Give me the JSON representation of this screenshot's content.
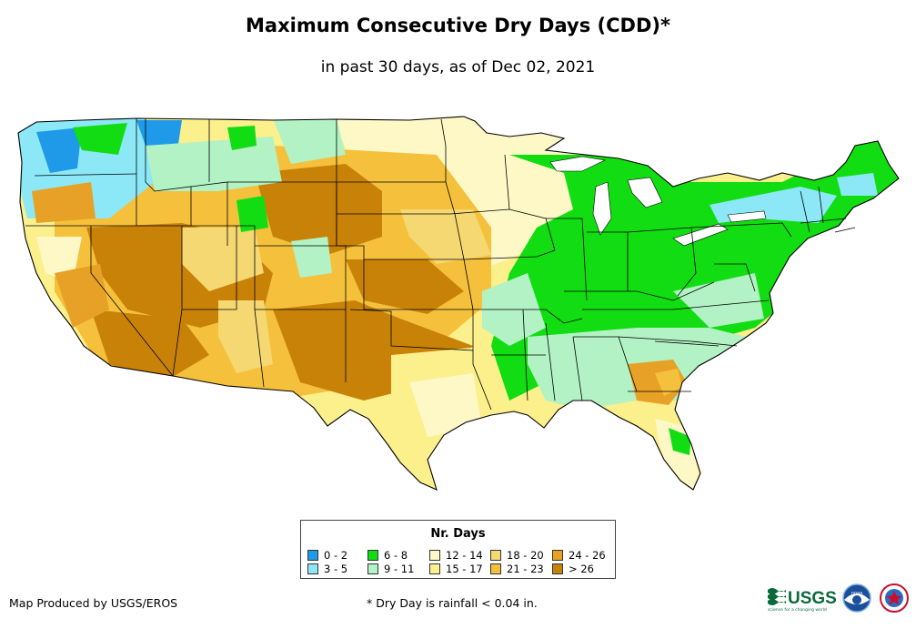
{
  "title": "Maximum Consecutive Dry Days (CDD)*",
  "subtitle": "in past 30 days, as of Dec 02, 2021",
  "legend": {
    "title": "Nr. Days",
    "items": [
      {
        "label": "0 - 2",
        "color": "#1f9ae9"
      },
      {
        "label": "3 - 5",
        "color": "#8ce8f6"
      },
      {
        "label": "6 - 8",
        "color": "#11dd12"
      },
      {
        "label": "9 - 11",
        "color": "#b2f2c4"
      },
      {
        "label": "12 - 14",
        "color": "#fdf8c6"
      },
      {
        "label": "15 - 17",
        "color": "#fbf08c"
      },
      {
        "label": "18 - 20",
        "color": "#f6d872"
      },
      {
        "label": "21 - 23",
        "color": "#f5c13c"
      },
      {
        "label": "24 - 26",
        "color": "#e7a126"
      },
      {
        "label": "> 26",
        "color": "#c98208"
      }
    ]
  },
  "credit": "Map Produced by USGS/EROS",
  "footnote": "* Dry Day is rainfall < 0.04 in.",
  "logos": {
    "usgs": "USGS",
    "usgs_tagline": "science for a changing world",
    "noaa": "noaa"
  }
}
